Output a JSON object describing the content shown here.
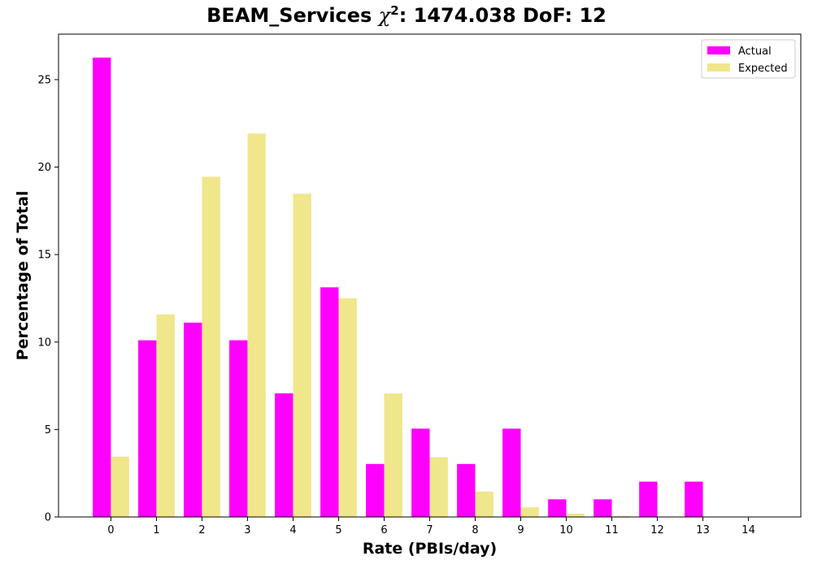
{
  "chart_data": {
    "type": "bar",
    "title": {
      "prefix": "BEAM_Services",
      "chi_symbol": "χ",
      "exponent": "2",
      "suffix": ": 1474.038 DoF: 12"
    },
    "xlabel": "Rate (PBIs/day)",
    "ylabel": "Percentage of Total",
    "categories": [
      "0",
      "1",
      "2",
      "3",
      "4",
      "5",
      "6",
      "7",
      "8",
      "9",
      "10",
      "11",
      "12",
      "13",
      "14"
    ],
    "series": [
      {
        "name": "Actual",
        "color": "#ff00ff",
        "values": [
          26.26,
          10.1,
          11.11,
          10.1,
          7.07,
          13.13,
          3.03,
          5.05,
          3.03,
          5.05,
          1.01,
          1.01,
          2.02,
          2.02,
          0
        ]
      },
      {
        "name": "Expected",
        "color": "#f0e68c",
        "values": [
          3.45,
          11.58,
          19.45,
          21.92,
          18.48,
          12.5,
          7.06,
          3.42,
          1.45,
          0.55,
          0.19,
          0.06,
          0.02,
          0.005,
          0.001
        ]
      }
    ],
    "yticks": [
      0,
      5,
      10,
      15,
      20,
      25
    ],
    "ylim": [
      0,
      27.6
    ],
    "xlim": [
      -1.15,
      15.15
    ],
    "grid": false,
    "legend_position": "top-right"
  }
}
